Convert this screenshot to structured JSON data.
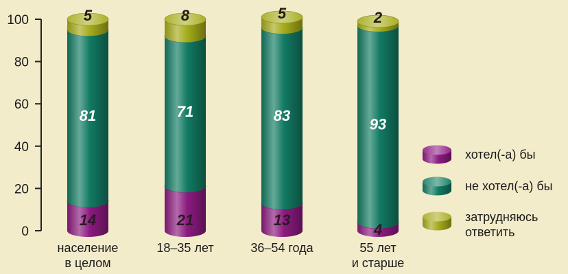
{
  "chart_data": {
    "type": "bar",
    "stacked": true,
    "categories": [
      [
        "население",
        "в целом"
      ],
      [
        "18–35 лет"
      ],
      [
        "36–54 года"
      ],
      [
        "55 лет",
        "и старше"
      ]
    ],
    "series": [
      {
        "name": "хотел(-а) бы",
        "values": [
          14,
          21,
          13,
          4
        ],
        "color": "#8c1a7f",
        "label_color": "#2a1a25"
      },
      {
        "name": "не хотел(-а) бы",
        "values": [
          81,
          71,
          83,
          93
        ],
        "color": "#127a62",
        "label_color": "#ffffff"
      },
      {
        "name": "затрудняюсь ответить",
        "values": [
          5,
          8,
          5,
          2
        ],
        "color": "#a5ab1a",
        "label_color": "#1f1f10"
      }
    ],
    "ylim": [
      0,
      100
    ],
    "yticks": [
      "0",
      "20",
      "40",
      "60",
      "80",
      "100"
    ],
    "legend": {
      "placement": "right",
      "labels": [
        [
          "хотел(-а) бы"
        ],
        [
          "не хотел(-а) бы"
        ],
        [
          "затрудняюсь",
          "ответить"
        ]
      ]
    },
    "grid": false,
    "background": "#f3eccb"
  }
}
